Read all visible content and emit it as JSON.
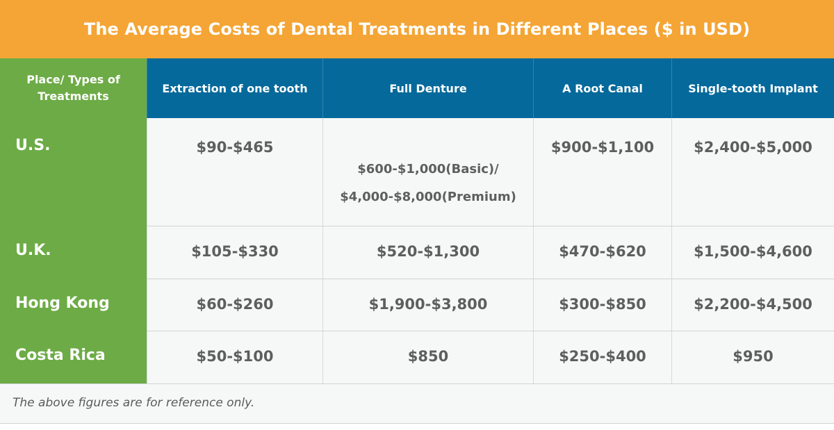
{
  "title": "The Average Costs of Dental Treatments in Different Places ($ in USD)",
  "table": {
    "corner_label": "Place/ Types of Treatments",
    "columns": [
      "Extraction of one tooth",
      "Full Denture",
      "A Root Canal",
      "Single-tooth Implant"
    ],
    "rows": [
      {
        "place": "U.S.",
        "values": [
          "$90-$465",
          "$600-$1,000(Basic)/",
          "$900-$1,100",
          "$2,400-$5,000"
        ],
        "denture_line2": "$4,000-$8,000(Premium)"
      },
      {
        "place": "U.K.",
        "values": [
          "$105-$330",
          "$520-$1,300",
          "$470-$620",
          "$1,500-$4,600"
        ]
      },
      {
        "place": "Hong Kong",
        "values": [
          "$60-$260",
          "$1,900-$3,800",
          "$300-$850",
          "$2,200-$4,500"
        ]
      },
      {
        "place": "Costa Rica",
        "values": [
          "$50-$100",
          "$850",
          "$250-$400",
          "$950"
        ]
      }
    ]
  },
  "footnote": "The above figures are for reference only.",
  "colors": {
    "title_bg": "#F4A535",
    "header_bg": "#05699B",
    "place_bg": "#6DAB46",
    "cell_bg": "#F6F8F8",
    "value_text": "#5E5E5E"
  }
}
